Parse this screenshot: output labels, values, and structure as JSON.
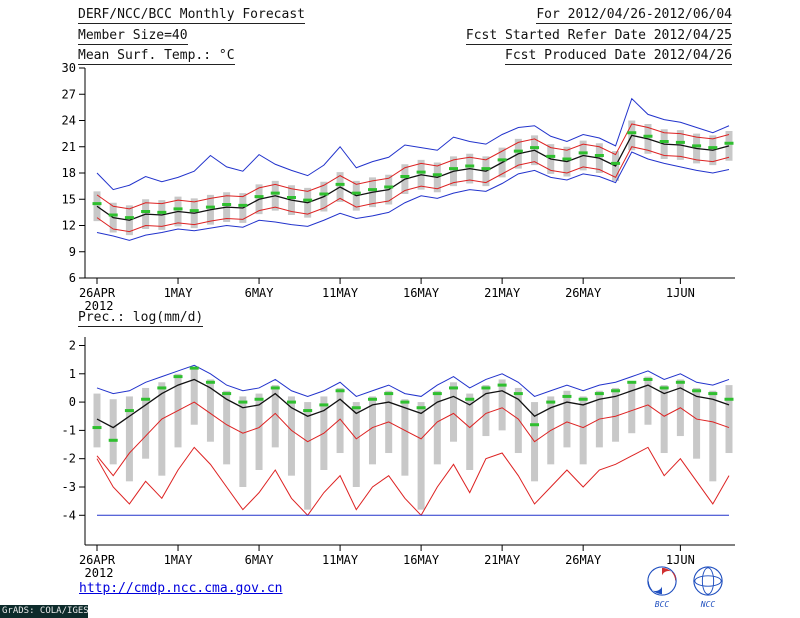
{
  "header": {
    "title": "DERF/NCC/BCC Monthly Forecast",
    "member_size": "Member Size=40",
    "panel1_label": "Mean Surf. Temp.: °C",
    "for_range": "For 2012/04/26-2012/06/04",
    "fcst_started": "Fcst Started Refer Date 2012/04/25",
    "fcst_produced": "Fcst Produced Date 2012/04/26"
  },
  "footer": {
    "url": "http://cmdp.ncc.cma.gov.cn",
    "grads_credit": "GrADS: COLA/IGES",
    "logos": [
      {
        "name": "bcc-logo",
        "label": "BCC"
      },
      {
        "name": "ncc-logo",
        "label": "NCC"
      }
    ]
  },
  "colors": {
    "blue": "#2233cc",
    "red": "#dd2222",
    "green": "#2fbf2f",
    "black": "#111111",
    "bar": "#c8c8c8",
    "axis": "#000000"
  },
  "chart_data": [
    {
      "type": "line",
      "title": "Mean Surf. Temp.: °C",
      "xlabel": "",
      "ylabel": "°C",
      "ylim": [
        6,
        30
      ],
      "yticks": [
        6,
        9,
        12,
        15,
        18,
        21,
        24,
        27,
        30
      ],
      "n_days": 40,
      "start_date": "2012/04/26",
      "end_date": "2012/06/04",
      "xticks": [
        {
          "day": 0,
          "label": "26APR",
          "year": "2012"
        },
        {
          "day": 5,
          "label": "1MAY"
        },
        {
          "day": 10,
          "label": "6MAY"
        },
        {
          "day": 15,
          "label": "11MAY"
        },
        {
          "day": 20,
          "label": "16MAY"
        },
        {
          "day": 25,
          "label": "21MAY"
        },
        {
          "day": 30,
          "label": "26MAY"
        },
        {
          "day": 36,
          "label": "1JUN"
        }
      ],
      "series": [
        {
          "name": "ensemble-max",
          "color": "blue",
          "style": "line",
          "values": [
            18.0,
            16.1,
            16.6,
            17.6,
            17.0,
            17.5,
            18.2,
            20.0,
            18.7,
            18.2,
            20.1,
            19.0,
            18.3,
            17.7,
            18.9,
            21.0,
            18.6,
            19.3,
            19.8,
            21.2,
            20.9,
            20.6,
            22.1,
            21.6,
            21.3,
            22.4,
            23.2,
            23.4,
            22.2,
            21.6,
            22.4,
            22.0,
            21.1,
            26.5,
            24.7,
            24.1,
            23.8,
            23.2,
            22.6,
            23.4
          ]
        },
        {
          "name": "mean-plus-spread",
          "color": "red",
          "style": "line",
          "values": [
            15.5,
            14.2,
            13.9,
            14.6,
            14.5,
            14.9,
            14.7,
            15.1,
            15.4,
            15.3,
            16.3,
            16.7,
            16.2,
            15.9,
            16.6,
            17.7,
            16.7,
            17.1,
            17.4,
            18.6,
            19.1,
            18.8,
            19.5,
            19.8,
            19.5,
            20.5,
            21.5,
            21.9,
            20.9,
            20.6,
            21.3,
            21.0,
            20.1,
            23.6,
            23.2,
            22.6,
            22.5,
            22.1,
            21.9,
            22.4
          ]
        },
        {
          "name": "mean-minus-spread",
          "color": "red",
          "style": "line",
          "values": [
            12.9,
            11.6,
            11.3,
            12.0,
            11.9,
            12.3,
            12.1,
            12.5,
            12.8,
            12.7,
            13.7,
            14.1,
            13.6,
            13.3,
            14.0,
            15.1,
            14.1,
            14.5,
            14.8,
            16.0,
            16.5,
            16.2,
            16.9,
            17.2,
            16.9,
            17.9,
            18.9,
            19.3,
            18.3,
            18.0,
            18.7,
            18.4,
            17.5,
            21.0,
            20.6,
            20.0,
            19.9,
            19.5,
            19.3,
            19.8
          ]
        },
        {
          "name": "ensemble-min",
          "color": "blue",
          "style": "line",
          "values": [
            11.2,
            10.8,
            10.3,
            10.9,
            11.2,
            11.6,
            11.4,
            11.7,
            12.0,
            11.8,
            12.6,
            12.4,
            12.1,
            11.9,
            12.6,
            13.4,
            12.8,
            13.1,
            13.5,
            14.6,
            15.4,
            15.1,
            15.7,
            16.1,
            15.9,
            16.8,
            17.9,
            18.3,
            17.5,
            17.2,
            17.9,
            17.6,
            16.9,
            20.4,
            19.6,
            19.1,
            18.7,
            18.3,
            18.0,
            18.4
          ]
        },
        {
          "name": "ensemble-mean",
          "color": "black",
          "style": "line",
          "values": [
            14.2,
            12.9,
            12.6,
            13.3,
            13.2,
            13.6,
            13.4,
            13.8,
            14.1,
            14.0,
            15.0,
            15.4,
            14.9,
            14.6,
            15.3,
            16.4,
            15.4,
            15.8,
            16.1,
            17.3,
            17.8,
            17.5,
            18.2,
            18.5,
            18.2,
            19.2,
            20.2,
            20.6,
            19.6,
            19.3,
            20.0,
            19.7,
            18.8,
            22.3,
            21.9,
            21.3,
            21.2,
            20.8,
            20.6,
            21.1
          ]
        },
        {
          "name": "ensemble-median",
          "color": "green",
          "style": "median-marks",
          "values": [
            14.5,
            13.2,
            12.9,
            13.6,
            13.5,
            13.9,
            13.7,
            14.1,
            14.4,
            14.3,
            15.3,
            15.7,
            15.2,
            14.9,
            15.6,
            16.7,
            15.7,
            16.1,
            16.4,
            17.6,
            18.1,
            17.8,
            18.5,
            18.8,
            18.5,
            19.5,
            20.5,
            20.9,
            19.9,
            19.6,
            20.3,
            20.0,
            19.1,
            22.6,
            22.2,
            21.6,
            21.5,
            21.1,
            20.9,
            21.4
          ]
        }
      ],
      "bars": {
        "name": "ensemble-spread-bar",
        "top": [
          15.9,
          14.6,
          14.3,
          15.0,
          14.9,
          15.3,
          15.1,
          15.5,
          15.8,
          15.7,
          16.7,
          17.1,
          16.6,
          16.3,
          17.0,
          18.1,
          17.1,
          17.5,
          17.8,
          19.0,
          19.5,
          19.2,
          19.9,
          20.2,
          19.9,
          20.9,
          21.9,
          22.3,
          21.3,
          21.0,
          21.7,
          21.4,
          20.5,
          24.0,
          23.6,
          23.0,
          22.9,
          22.5,
          22.3,
          22.8
        ],
        "bottom": [
          12.5,
          11.2,
          10.9,
          11.6,
          11.5,
          11.9,
          11.7,
          12.1,
          12.4,
          12.3,
          13.3,
          13.7,
          13.2,
          12.9,
          13.6,
          14.7,
          13.7,
          14.1,
          14.4,
          15.6,
          16.1,
          15.8,
          16.5,
          16.8,
          16.5,
          17.5,
          18.5,
          18.9,
          17.9,
          17.6,
          18.3,
          18.0,
          17.1,
          20.6,
          20.2,
          19.6,
          19.5,
          19.1,
          18.9,
          19.4
        ]
      }
    },
    {
      "type": "line",
      "title": "Prec.: log(mm/d)",
      "xlabel": "",
      "ylabel": "log(mm/d)",
      "ylim": [
        -4,
        2
      ],
      "yticks": [
        -4,
        -3,
        -2,
        -1,
        0,
        1,
        2
      ],
      "n_days": 40,
      "start_date": "2012/04/26",
      "end_date": "2012/06/04",
      "xticks": [
        {
          "day": 0,
          "label": "26APR",
          "year": "2012"
        },
        {
          "day": 5,
          "label": "1MAY"
        },
        {
          "day": 10,
          "label": "6MAY"
        },
        {
          "day": 15,
          "label": "11MAY"
        },
        {
          "day": 20,
          "label": "16MAY"
        },
        {
          "day": 25,
          "label": "21MAY"
        },
        {
          "day": 30,
          "label": "26MAY"
        },
        {
          "day": 36,
          "label": "1JUN"
        }
      ],
      "series": [
        {
          "name": "ensemble-max",
          "color": "blue",
          "style": "line",
          "values": [
            0.5,
            0.3,
            0.4,
            0.7,
            0.9,
            1.1,
            1.3,
            1.0,
            0.6,
            0.4,
            0.5,
            0.8,
            0.4,
            0.2,
            0.4,
            0.7,
            0.2,
            0.4,
            0.6,
            0.3,
            0.2,
            0.6,
            0.9,
            0.5,
            0.8,
            1.0,
            0.7,
            0.2,
            0.4,
            0.6,
            0.4,
            0.6,
            0.7,
            0.9,
            1.1,
            0.8,
            1.0,
            0.7,
            0.6,
            0.8
          ]
        },
        {
          "name": "lower-quartile",
          "color": "red",
          "style": "line",
          "values": [
            -1.9,
            -2.6,
            -1.8,
            -1.2,
            -0.6,
            -0.3,
            0.0,
            -0.4,
            -0.8,
            -1.1,
            -0.9,
            -0.4,
            -1.0,
            -1.4,
            -1.1,
            -0.6,
            -1.3,
            -0.9,
            -0.7,
            -1.0,
            -1.3,
            -0.7,
            -0.4,
            -0.9,
            -0.4,
            -0.2,
            -0.6,
            -1.4,
            -1.0,
            -0.7,
            -0.9,
            -0.6,
            -0.5,
            -0.3,
            -0.1,
            -0.5,
            -0.2,
            -0.6,
            -0.7,
            -0.9
          ]
        },
        {
          "name": "near-minimum",
          "color": "red",
          "style": "line",
          "values": [
            -2.0,
            -3.0,
            -3.6,
            -2.8,
            -3.4,
            -2.4,
            -1.6,
            -2.2,
            -3.0,
            -3.8,
            -3.2,
            -2.4,
            -3.4,
            -4.0,
            -3.2,
            -2.6,
            -3.8,
            -3.0,
            -2.6,
            -3.4,
            -4.0,
            -3.0,
            -2.2,
            -3.2,
            -2.0,
            -1.8,
            -2.6,
            -3.6,
            -3.0,
            -2.4,
            -3.0,
            -2.4,
            -2.2,
            -1.9,
            -1.6,
            -2.6,
            -2.0,
            -2.8,
            -3.6,
            -2.6
          ]
        },
        {
          "name": "ensemble-min-floor",
          "color": "blue",
          "style": "line",
          "values": [
            -4,
            -4,
            -4,
            -4,
            -4,
            -4,
            -4,
            -4,
            -4,
            -4,
            -4,
            -4,
            -4,
            -4,
            -4,
            -4,
            -4,
            -4,
            -4,
            -4,
            -4,
            -4,
            -4,
            -4,
            -4,
            -4,
            -4,
            -4,
            -4,
            -4,
            -4,
            -4,
            -4,
            -4,
            -4,
            -4,
            -4,
            -4,
            -4,
            -4
          ]
        },
        {
          "name": "ensemble-mean",
          "color": "black",
          "style": "line",
          "values": [
            -0.6,
            -0.9,
            -0.5,
            -0.1,
            0.3,
            0.6,
            0.8,
            0.5,
            0.1,
            -0.2,
            -0.1,
            0.3,
            -0.2,
            -0.5,
            -0.3,
            0.1,
            -0.4,
            -0.1,
            0.0,
            -0.2,
            -0.4,
            0.0,
            0.2,
            -0.1,
            0.3,
            0.4,
            0.1,
            -0.5,
            -0.2,
            0.0,
            -0.1,
            0.1,
            0.2,
            0.4,
            0.6,
            0.3,
            0.5,
            0.2,
            0.1,
            -0.1
          ]
        },
        {
          "name": "ensemble-median",
          "color": "green",
          "style": "median-marks",
          "values": [
            -0.9,
            -1.35,
            -0.3,
            0.1,
            0.5,
            0.9,
            1.2,
            0.7,
            0.3,
            0.0,
            0.1,
            0.5,
            0.0,
            -0.3,
            -0.1,
            0.4,
            -0.2,
            0.1,
            0.3,
            0.0,
            -0.2,
            0.3,
            0.5,
            0.1,
            0.5,
            0.6,
            0.3,
            -0.8,
            0.0,
            0.2,
            0.1,
            0.3,
            0.4,
            0.7,
            0.8,
            0.5,
            0.7,
            0.4,
            0.3,
            0.1
          ]
        }
      ],
      "bars": {
        "name": "ensemble-spread-bar",
        "top": [
          0.3,
          0.1,
          0.2,
          0.5,
          0.7,
          1.0,
          1.2,
          0.8,
          0.4,
          0.2,
          0.3,
          0.6,
          0.2,
          0.0,
          0.2,
          0.5,
          0.0,
          0.2,
          0.4,
          0.1,
          0.0,
          0.4,
          0.7,
          0.3,
          0.6,
          0.8,
          0.5,
          0.0,
          0.2,
          0.4,
          0.2,
          0.4,
          0.5,
          0.7,
          0.9,
          0.6,
          0.8,
          0.5,
          0.4,
          0.6
        ],
        "bottom": [
          -1.6,
          -2.2,
          -2.8,
          -2.0,
          -2.6,
          -1.6,
          -0.8,
          -1.4,
          -2.2,
          -3.0,
          -2.4,
          -1.6,
          -2.6,
          -3.8,
          -2.4,
          -1.8,
          -3.0,
          -2.2,
          -1.8,
          -2.6,
          -3.8,
          -2.2,
          -1.4,
          -2.4,
          -1.2,
          -1.0,
          -1.8,
          -2.8,
          -2.2,
          -1.6,
          -2.2,
          -1.6,
          -1.4,
          -1.1,
          -0.8,
          -1.8,
          -1.2,
          -2.0,
          -2.8,
          -1.8
        ]
      }
    }
  ]
}
